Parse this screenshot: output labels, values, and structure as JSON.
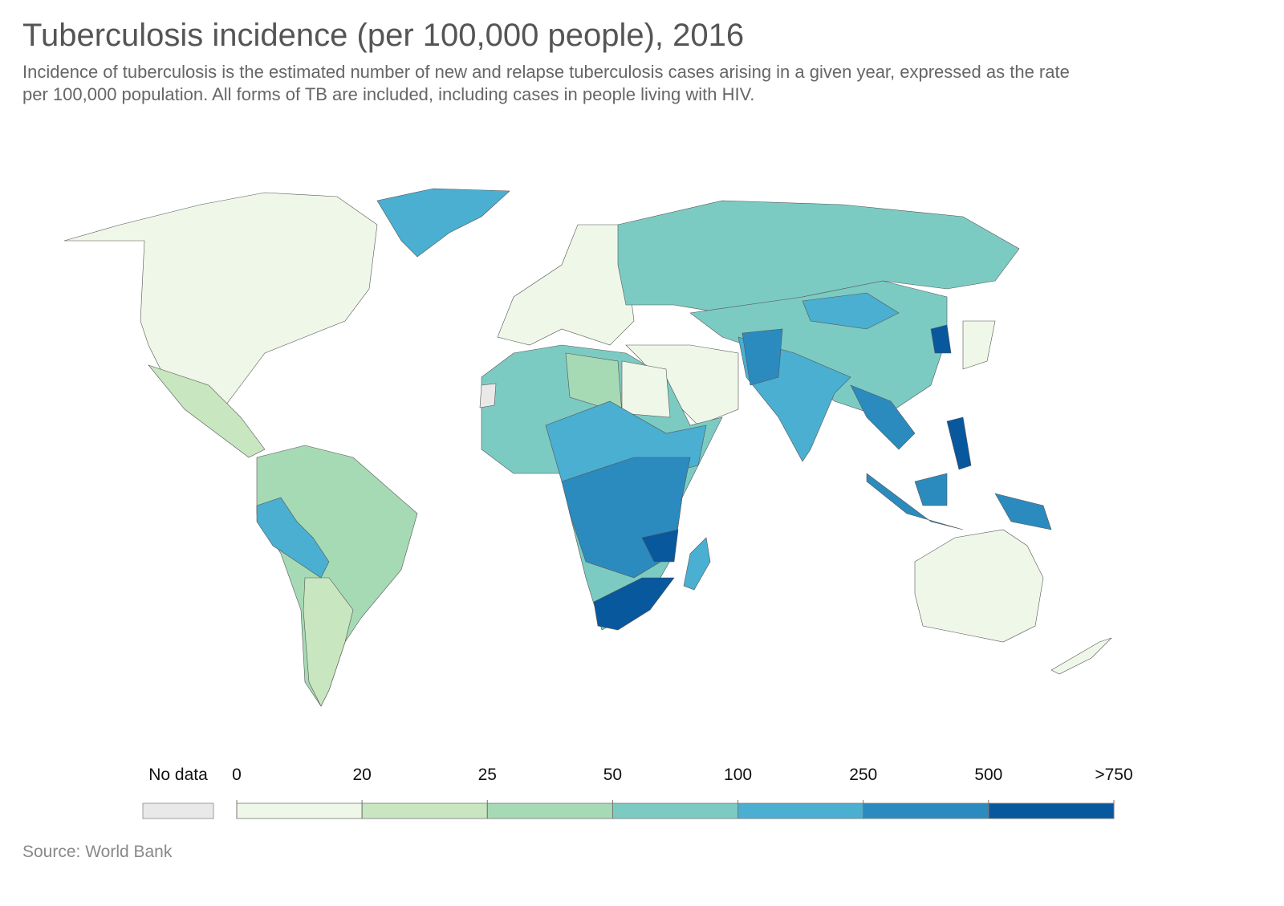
{
  "title": "Tuberculosis incidence (per 100,000 people), 2016",
  "subtitle": "Incidence of tuberculosis is the estimated number of new and relapse tuberculosis cases arising in a given year, expressed as the rate per 100,000 population. All forms of TB are included, including cases in people living with HIV.",
  "legend": {
    "no_data": {
      "label": "No data",
      "color": "#e9e9e9"
    },
    "ticks": [
      "0",
      "20",
      "25",
      "50",
      "100",
      "250",
      "500",
      ">750"
    ],
    "colors": [
      "#eff7e9",
      "#c8e6c0",
      "#a6dab5",
      "#7ccbc3",
      "#4aafd1",
      "#2b8bbf",
      "#08589e"
    ]
  },
  "source": "Source: World Bank"
}
